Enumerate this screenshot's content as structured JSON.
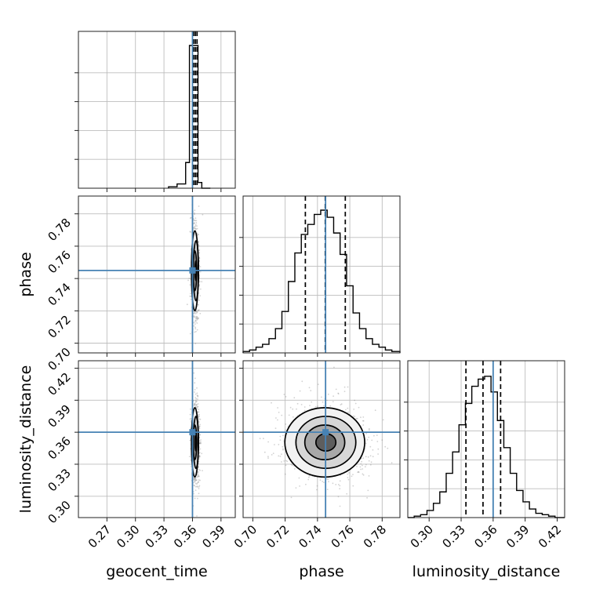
{
  "chart_data": {
    "type": "corner",
    "colors": {
      "truth": "#4682b4",
      "line": "#000000",
      "grid": "#bdbdbd",
      "samples": "#7f7f7f"
    },
    "parameters": [
      {
        "name": "geocent_time",
        "xlabel": "geocent_time",
        "range": [
          0.24,
          0.405
        ],
        "ticks": [
          "0.27",
          "0.30",
          "0.33",
          "0.36",
          "0.39"
        ],
        "tick_values": [
          0.27,
          0.3,
          0.33,
          0.36,
          0.39
        ]
      },
      {
        "name": "phase",
        "ylabel": "phase",
        "xlabel": "phase",
        "range": [
          0.694,
          0.791
        ],
        "ticks": [
          "0.70",
          "0.72",
          "0.74",
          "0.76",
          "0.78"
        ],
        "tick_values": [
          0.7,
          0.72,
          0.74,
          0.76,
          0.78
        ]
      },
      {
        "name": "luminosity_distance",
        "ylabel": "luminosity_distance",
        "xlabel": "luminosity_distance",
        "range": [
          0.28,
          0.427
        ],
        "ticks": [
          "0.30",
          "0.33",
          "0.36",
          "0.39",
          "0.42"
        ],
        "tick_values": [
          0.3,
          0.33,
          0.36,
          0.39,
          0.42
        ]
      }
    ],
    "truths": [
      0.36,
      0.745,
      0.36
    ],
    "quantiles": {
      "geocent_time": [
        0.3612,
        0.363,
        0.3648
      ],
      "phase": [
        0.7325,
        0.7448,
        0.7572
      ],
      "luminosity_distance": [
        0.3345,
        0.3505,
        0.367
      ]
    },
    "marginals": {
      "geocent_time": {
        "edges": [
          0.3348,
          0.3438,
          0.3528,
          0.3568,
          0.3608,
          0.3658,
          0.3698,
          0.3788
        ],
        "counts": [
          0.01,
          0.03,
          0.18,
          1.0,
          1.0,
          0.04,
          0.0
        ]
      },
      "phase": {
        "edges": [
          0.694,
          0.698,
          0.702,
          0.706,
          0.71,
          0.714,
          0.718,
          0.722,
          0.726,
          0.73,
          0.734,
          0.738,
          0.742,
          0.746,
          0.75,
          0.754,
          0.758,
          0.762,
          0.766,
          0.77,
          0.774,
          0.778,
          0.782,
          0.786,
          0.791
        ],
        "counts": [
          0.01,
          0.02,
          0.04,
          0.06,
          0.1,
          0.17,
          0.29,
          0.5,
          0.7,
          0.83,
          0.9,
          0.97,
          1.0,
          0.95,
          0.84,
          0.69,
          0.47,
          0.28,
          0.17,
          0.1,
          0.06,
          0.04,
          0.02,
          0.01
        ]
      },
      "luminosity_distance": {
        "edges": [
          0.28,
          0.286,
          0.292,
          0.298,
          0.304,
          0.31,
          0.316,
          0.322,
          0.328,
          0.334,
          0.34,
          0.346,
          0.352,
          0.358,
          0.364,
          0.37,
          0.376,
          0.382,
          0.388,
          0.394,
          0.4,
          0.406,
          0.412,
          0.418,
          0.427
        ],
        "counts": [
          0.0,
          0.01,
          0.02,
          0.05,
          0.1,
          0.18,
          0.31,
          0.46,
          0.65,
          0.8,
          0.92,
          0.97,
          0.99,
          0.88,
          0.68,
          0.49,
          0.31,
          0.19,
          0.11,
          0.06,
          0.03,
          0.02,
          0.01,
          0.0
        ]
      }
    }
  }
}
